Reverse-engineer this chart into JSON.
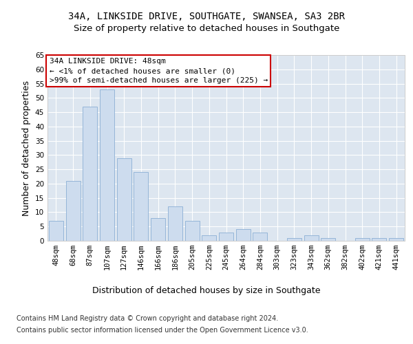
{
  "title_line1": "34A, LINKSIDE DRIVE, SOUTHGATE, SWANSEA, SA3 2BR",
  "title_line2": "Size of property relative to detached houses in Southgate",
  "xlabel": "Distribution of detached houses by size in Southgate",
  "ylabel": "Number of detached properties",
  "categories": [
    "48sqm",
    "68sqm",
    "87sqm",
    "107sqm",
    "127sqm",
    "146sqm",
    "166sqm",
    "186sqm",
    "205sqm",
    "225sqm",
    "245sqm",
    "264sqm",
    "284sqm",
    "303sqm",
    "323sqm",
    "343sqm",
    "362sqm",
    "382sqm",
    "402sqm",
    "421sqm",
    "441sqm"
  ],
  "values": [
    7,
    21,
    47,
    53,
    29,
    24,
    8,
    12,
    7,
    2,
    3,
    4,
    3,
    0,
    1,
    2,
    1,
    0,
    1,
    1,
    1
  ],
  "bar_color": "#cddcee",
  "bar_edge_color": "#8aaed4",
  "annotation_text": "34A LINKSIDE DRIVE: 48sqm\n← <1% of detached houses are smaller (0)\n>99% of semi-detached houses are larger (225) →",
  "annotation_box_color": "#ffffff",
  "annotation_box_edge_color": "#cc0000",
  "ylim": [
    0,
    65
  ],
  "yticks": [
    0,
    5,
    10,
    15,
    20,
    25,
    30,
    35,
    40,
    45,
    50,
    55,
    60,
    65
  ],
  "background_color": "#dde6f0",
  "grid_color": "#ffffff",
  "fig_background_color": "#ffffff",
  "footer_line1": "Contains HM Land Registry data © Crown copyright and database right 2024.",
  "footer_line2": "Contains public sector information licensed under the Open Government Licence v3.0.",
  "title_fontsize": 10,
  "subtitle_fontsize": 9.5,
  "axis_label_fontsize": 9,
  "tick_fontsize": 7.5,
  "annotation_fontsize": 8,
  "footer_fontsize": 7
}
